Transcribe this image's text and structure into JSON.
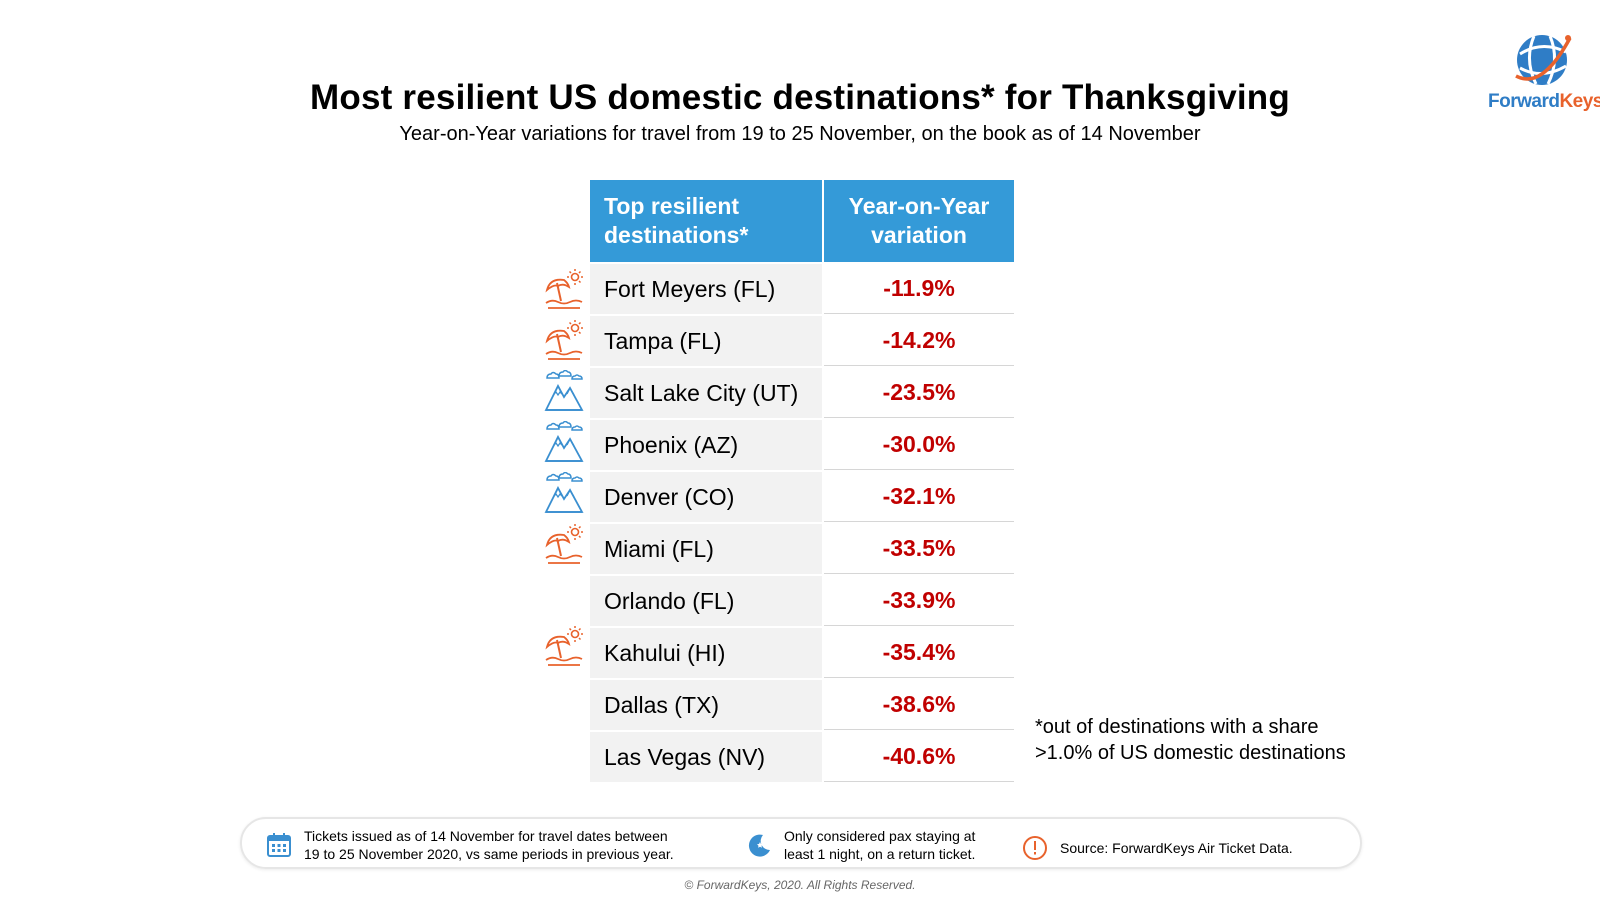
{
  "title": "Most resilient US domestic destinations* for Thanksgiving",
  "subtitle": "Year-on-Year variations for travel from 19 to 25 November, on the book as of 14 November",
  "logo": {
    "text_a": "Forward",
    "text_b": "Keys"
  },
  "table": {
    "headers": [
      "Top resilient destinations*",
      "Year-on-Year variation"
    ],
    "rows": [
      {
        "destination": "Fort Meyers (FL)",
        "variation": "-11.9%",
        "icon": "beach-umbrella-icon"
      },
      {
        "destination": "Tampa (FL)",
        "variation": "-14.2%",
        "icon": "beach-umbrella-icon"
      },
      {
        "destination": "Salt Lake City (UT)",
        "variation": "-23.5%",
        "icon": "mountain-icon"
      },
      {
        "destination": "Phoenix (AZ)",
        "variation": "-30.0%",
        "icon": "mountain-icon"
      },
      {
        "destination": "Denver (CO)",
        "variation": "-32.1%",
        "icon": "mountain-icon"
      },
      {
        "destination": "Miami (FL)",
        "variation": "-33.5%",
        "icon": "beach-umbrella-icon"
      },
      {
        "destination": "Orlando (FL)",
        "variation": "-33.9%",
        "icon": ""
      },
      {
        "destination": "Kahului (HI)",
        "variation": "-35.4%",
        "icon": "beach-umbrella-icon"
      },
      {
        "destination": "Dallas (TX)",
        "variation": "-38.6%",
        "icon": ""
      },
      {
        "destination": "Las Vegas (NV)",
        "variation": "-40.6%",
        "icon": ""
      }
    ]
  },
  "note": {
    "line1": "*out of destinations with a share",
    "line2": ">1.0% of US domestic destinations"
  },
  "footer": {
    "tickets_line1": "Tickets issued as of 14 November for travel dates between",
    "tickets_line2": "19 to 25 November 2020, vs same periods in previous year.",
    "pax_line1": "Only considered pax staying at",
    "pax_line2": "least 1 night, on a return ticket.",
    "source": "Source: ForwardKeys Air Ticket Data."
  },
  "copyright": "© ForwardKeys, 2020. All Rights Reserved.",
  "colors": {
    "header_bg": "#349ad8",
    "negative": "#c00000",
    "beach_icon": "#e8622c",
    "mountain_icon": "#3a8fd0"
  }
}
